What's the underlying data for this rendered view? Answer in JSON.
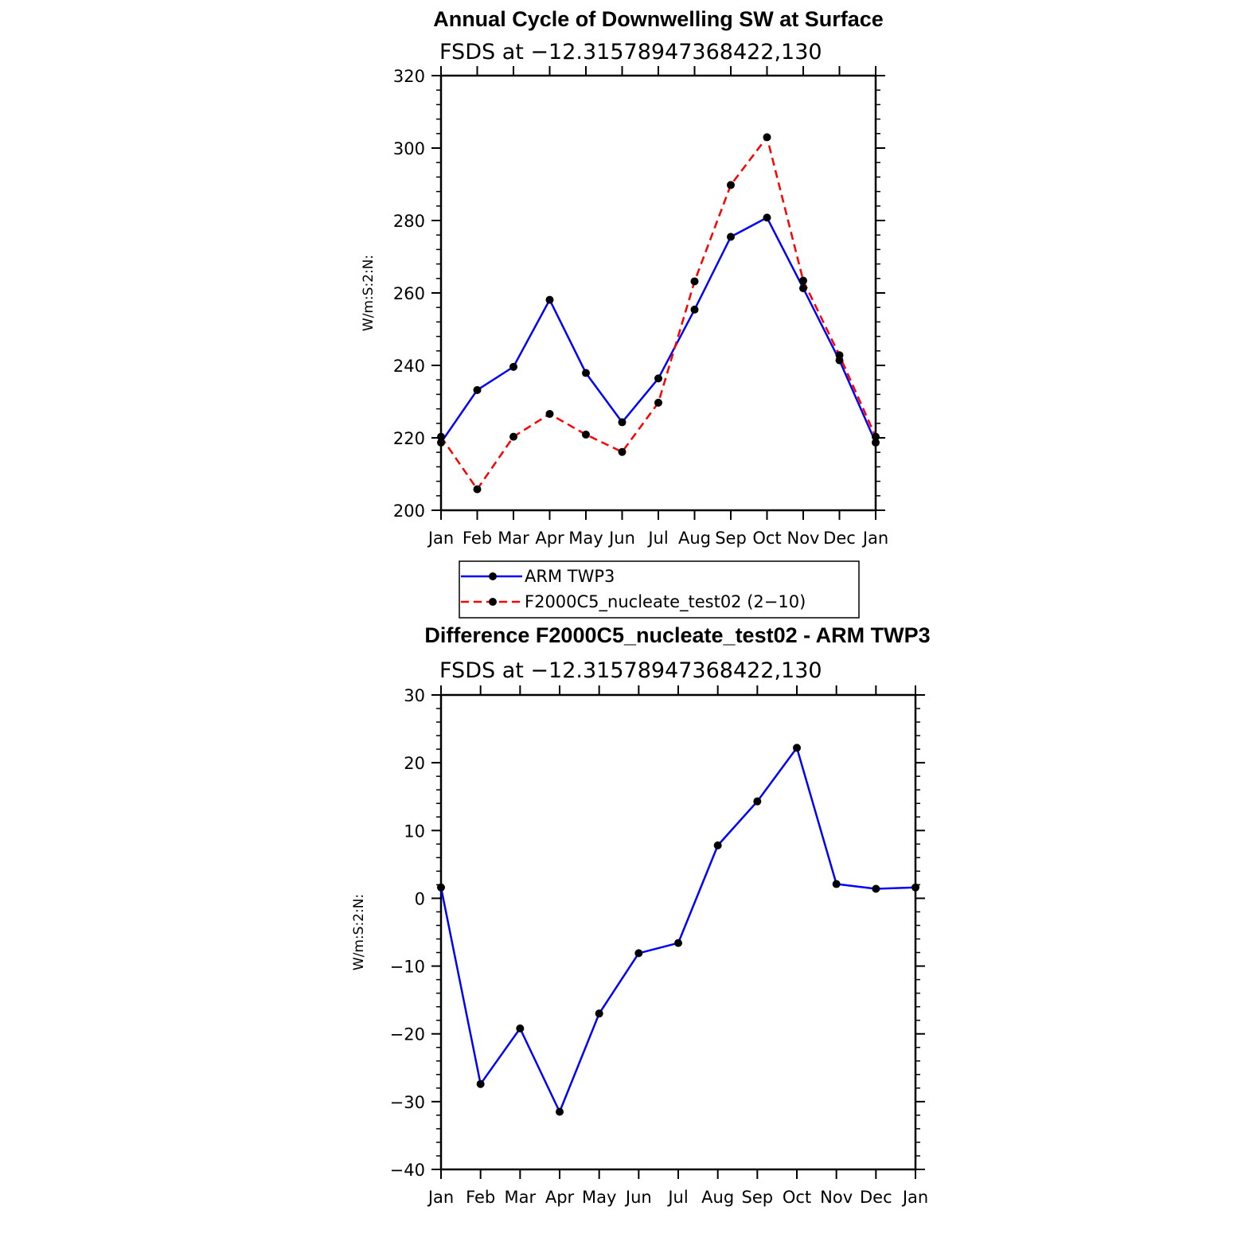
{
  "chart_data": [
    {
      "type": "line",
      "title": "Annual Cycle of Downwelling SW at Surface",
      "subtitle": "FSDS at −12.31578947368422,130",
      "ylabel": "W/m:S:2:N:",
      "ylim": [
        200,
        320
      ],
      "yticks": [
        "200",
        "220",
        "240",
        "260",
        "280",
        "300",
        "320"
      ],
      "categories": [
        "Jan",
        "Feb",
        "Mar",
        "Apr",
        "May",
        "Jun",
        "Jul",
        "Aug",
        "Sep",
        "Oct",
        "Nov",
        "Dec",
        "Jan"
      ],
      "series": [
        {
          "name": "ARM TWP3",
          "color": "#0000ff",
          "dash": "solid",
          "values": [
            218.7,
            233.2,
            239.6,
            258.1,
            237.9,
            224.3,
            236.4,
            255.4,
            275.5,
            280.8,
            261.3,
            241.4,
            218.7
          ]
        },
        {
          "name": "F2000C5_nucleate_test02 (2−10)",
          "color": "#ff0000",
          "dash": "dashed",
          "values": [
            220.3,
            205.8,
            220.3,
            226.6,
            220.9,
            216.1,
            229.7,
            263.2,
            289.8,
            303.0,
            263.4,
            242.8,
            220.3
          ]
        }
      ],
      "legend_position": "below"
    },
    {
      "type": "line",
      "title": "Difference F2000C5_nucleate_test02 - ARM TWP3",
      "subtitle": "FSDS at −12.31578947368422,130",
      "ylabel": "W/m:S:2:N:",
      "ylim": [
        -40,
        30
      ],
      "yticks": [
        "−40",
        "−30",
        "−20",
        "−10",
        "0",
        "10",
        "20",
        "30"
      ],
      "categories": [
        "Jan",
        "Feb",
        "Mar",
        "Apr",
        "May",
        "Jun",
        "Jul",
        "Aug",
        "Sep",
        "Oct",
        "Nov",
        "Dec",
        "Jan"
      ],
      "series": [
        {
          "color": "#0000ff",
          "dash": "solid",
          "values": [
            1.6,
            -27.4,
            -19.2,
            -31.5,
            -17.0,
            -8.1,
            -6.6,
            7.8,
            14.3,
            22.2,
            2.1,
            1.4,
            1.6
          ]
        }
      ]
    }
  ]
}
